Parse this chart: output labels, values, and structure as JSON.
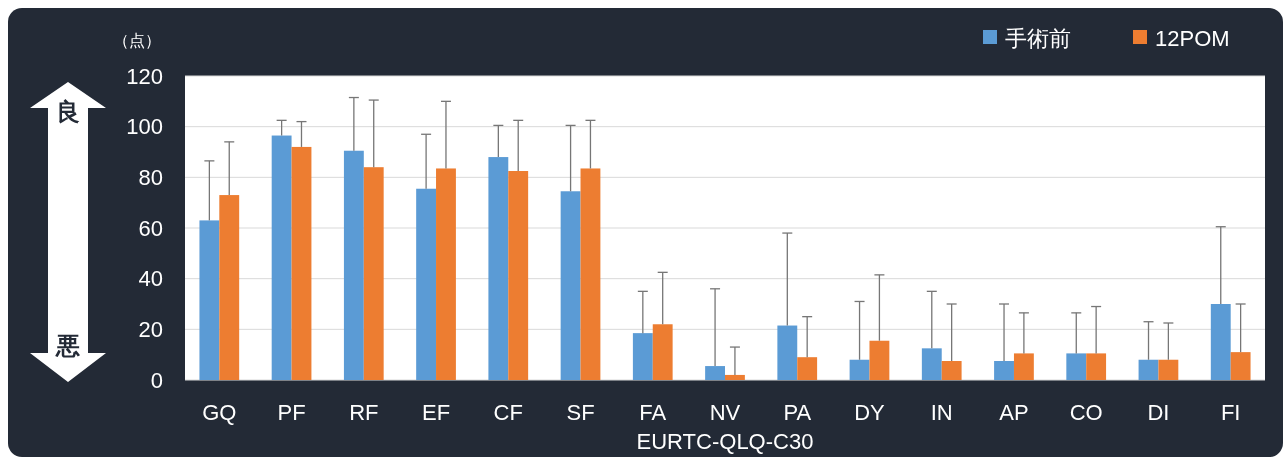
{
  "chart_data": {
    "type": "bar",
    "xlabel": "EURTC-QLQ-C30",
    "ylabel": "（点）",
    "categories": [
      "GQ",
      "PF",
      "RF",
      "EF",
      "CF",
      "SF",
      "FA",
      "NV",
      "PA",
      "DY",
      "IN",
      "AP",
      "CO",
      "DI",
      "FI"
    ],
    "series": [
      {
        "name": "手術前",
        "color": "#5b9bd5",
        "values": [
          63,
          96.5,
          90.5,
          75.5,
          88,
          74.5,
          18.5,
          5.5,
          21.5,
          8,
          12.5,
          7.5,
          10.5,
          8,
          30
        ],
        "errors": [
          [
            63,
            86.5
          ],
          [
            96.5,
            102.5
          ],
          [
            90.5,
            111.5
          ],
          [
            75.5,
            97
          ],
          [
            88,
            100.5
          ],
          [
            74.5,
            100.5
          ],
          [
            18.5,
            35
          ],
          [
            5.5,
            36
          ],
          [
            21.5,
            58
          ],
          [
            8,
            31
          ],
          [
            12.5,
            35
          ],
          [
            7.5,
            30
          ],
          [
            10.5,
            26.5
          ],
          [
            8,
            23
          ],
          [
            30,
            60.5
          ]
        ]
      },
      {
        "name": "12POM",
        "color": "#ed7d31",
        "values": [
          73,
          92,
          84,
          83.5,
          82.5,
          83.5,
          22,
          2,
          9,
          15.5,
          7.5,
          10.5,
          10.5,
          8,
          11
        ],
        "errors": [
          [
            73,
            94
          ],
          [
            92,
            102
          ],
          [
            84,
            110.5
          ],
          [
            83.5,
            110
          ],
          [
            82.5,
            102.5
          ],
          [
            83.5,
            102.5
          ],
          [
            22,
            42.5
          ],
          [
            2,
            13
          ],
          [
            9,
            25
          ],
          [
            15.5,
            41.5
          ],
          [
            7.5,
            30
          ],
          [
            10.5,
            26.5
          ],
          [
            10.5,
            29
          ],
          [
            8,
            22.5
          ],
          [
            11,
            30
          ]
        ]
      }
    ],
    "ylim": [
      0,
      120
    ],
    "yticks": [
      0,
      20,
      40,
      60,
      80,
      100,
      120
    ],
    "grid": "y",
    "legend": "top right",
    "annotations": [
      "良",
      "悪"
    ]
  }
}
